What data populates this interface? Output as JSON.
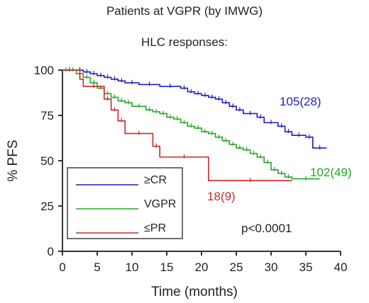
{
  "chart_data": {
    "type": "line",
    "title": "Patients at VGPR (by IMWG)",
    "subtitle": "HLC responses:",
    "xlabel": "Time (months)",
    "ylabel": "% PFS",
    "xlim": [
      0,
      40
    ],
    "ylim": [
      0,
      100
    ],
    "x_ticks": [
      "0",
      "5",
      "10",
      "15",
      "20",
      "25",
      "30",
      "35",
      "40"
    ],
    "y_ticks": [
      "0",
      "25",
      "50",
      "75",
      "100"
    ],
    "legend": {
      "placement": "bottom-left",
      "box": true
    },
    "grid": false,
    "series": [
      {
        "name": "≥CR",
        "color": "#1f1fb8",
        "label": "105(28)",
        "steps": [
          [
            0,
            100
          ],
          [
            2,
            100
          ],
          [
            3,
            99
          ],
          [
            4,
            98
          ],
          [
            5,
            97
          ],
          [
            6,
            96
          ],
          [
            7,
            95
          ],
          [
            8,
            94
          ],
          [
            9,
            93
          ],
          [
            11,
            92
          ],
          [
            14,
            91
          ],
          [
            17,
            90
          ],
          [
            18,
            88
          ],
          [
            19,
            87
          ],
          [
            20,
            86
          ],
          [
            21,
            85
          ],
          [
            22,
            84
          ],
          [
            23,
            82
          ],
          [
            24,
            80
          ],
          [
            25,
            78
          ],
          [
            26,
            76
          ],
          [
            28,
            74
          ],
          [
            29,
            71
          ],
          [
            31,
            69
          ],
          [
            32,
            66
          ],
          [
            33,
            64
          ],
          [
            35,
            63
          ],
          [
            36,
            57
          ],
          [
            38,
            57
          ]
        ]
      },
      {
        "name": "VGPR",
        "color": "#27a527",
        "label": "102(49)",
        "steps": [
          [
            0,
            100
          ],
          [
            1,
            100
          ],
          [
            2,
            98
          ],
          [
            3,
            96
          ],
          [
            4,
            93
          ],
          [
            5,
            90
          ],
          [
            6,
            87
          ],
          [
            7,
            85
          ],
          [
            8,
            83
          ],
          [
            9,
            82
          ],
          [
            10,
            80
          ],
          [
            12,
            78
          ],
          [
            13,
            77
          ],
          [
            14,
            76
          ],
          [
            15,
            74
          ],
          [
            16,
            73
          ],
          [
            17,
            71
          ],
          [
            18,
            69
          ],
          [
            19,
            68
          ],
          [
            20,
            66
          ],
          [
            21,
            65
          ],
          [
            22,
            63
          ],
          [
            23,
            61
          ],
          [
            24,
            59
          ],
          [
            25,
            57
          ],
          [
            26,
            56
          ],
          [
            27,
            54
          ],
          [
            28,
            52
          ],
          [
            29,
            49
          ],
          [
            30,
            45
          ],
          [
            31,
            43
          ],
          [
            32,
            41
          ],
          [
            33,
            40
          ],
          [
            37,
            40
          ]
        ]
      },
      {
        "name": "≤PR",
        "color": "#c82a2a",
        "label": "18(9)",
        "steps": [
          [
            0,
            100
          ],
          [
            2,
            100
          ],
          [
            2.5,
            95
          ],
          [
            3,
            91
          ],
          [
            6,
            84
          ],
          [
            7,
            78
          ],
          [
            8,
            72
          ],
          [
            9,
            65
          ],
          [
            13,
            58
          ],
          [
            14,
            52
          ],
          [
            21,
            39
          ],
          [
            33,
            39
          ]
        ]
      }
    ],
    "annotations": [
      {
        "text": "p<0.0001",
        "color": "#222222"
      }
    ]
  }
}
